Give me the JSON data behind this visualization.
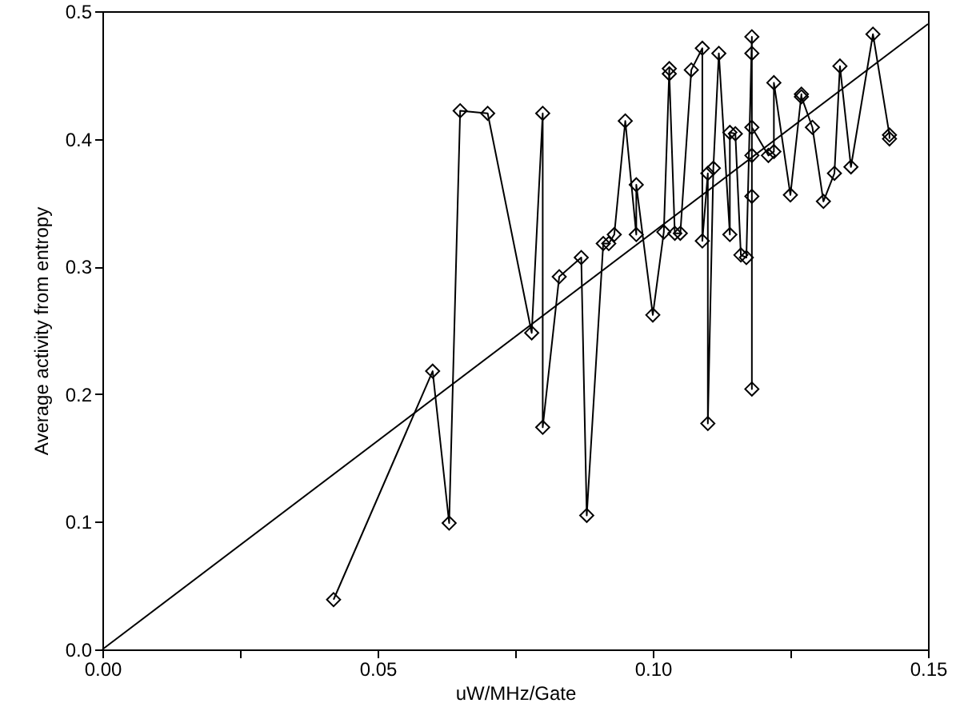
{
  "chart_data": {
    "type": "line",
    "xlabel": "uW/MHz/Gate",
    "ylabel": "Average activity from entropy",
    "xlim": [
      0,
      0.15
    ],
    "ylim": [
      0,
      0.5
    ],
    "xticks": [
      {
        "value": 0,
        "label": "0.00"
      },
      {
        "value": 0.025,
        "label": null
      },
      {
        "value": 0.05,
        "label": "0.05"
      },
      {
        "value": 0.075,
        "label": null
      },
      {
        "value": 0.1,
        "label": "0.10"
      },
      {
        "value": 0.125,
        "label": null
      },
      {
        "value": 0.15,
        "label": "0.15"
      }
    ],
    "yticks": [
      {
        "value": 0,
        "label": "0.0"
      },
      {
        "value": 0.1,
        "label": "0.1"
      },
      {
        "value": 0.2,
        "label": "0.2"
      },
      {
        "value": 0.3,
        "label": "0.3"
      },
      {
        "value": 0.4,
        "label": "0.4"
      },
      {
        "value": 0.5,
        "label": "0.5"
      }
    ],
    "grid": false,
    "line_style": "solid",
    "series": [
      {
        "color": "#000000",
        "marker": "diamond",
        "x": [
          0.042,
          0.06,
          0.063,
          0.065,
          0.07,
          0.078,
          0.08,
          0.08,
          0.083,
          0.087,
          0.088,
          0.091,
          0.092,
          0.093,
          0.095,
          0.097,
          0.097,
          0.1,
          0.102,
          0.103,
          0.103,
          0.104,
          0.105,
          0.107,
          0.109,
          0.109,
          0.11,
          0.11,
          0.111,
          0.112,
          0.114,
          0.114,
          0.115,
          0.116,
          0.117,
          0.118,
          0.118,
          0.118,
          0.118,
          0.118,
          0.118,
          0.121,
          0.122,
          0.122,
          0.125,
          0.127,
          0.127,
          0.129,
          0.131,
          0.133,
          0.134,
          0.136,
          0.14,
          0.143,
          0.143
        ],
        "values": [
          0.039,
          0.218,
          0.099,
          0.422,
          0.42,
          0.248,
          0.42,
          0.174,
          0.292,
          0.307,
          0.105,
          0.318,
          0.318,
          0.325,
          0.414,
          0.325,
          0.364,
          0.262,
          0.327,
          0.455,
          0.451,
          0.326,
          0.326,
          0.454,
          0.471,
          0.32,
          0.373,
          0.177,
          0.377,
          0.467,
          0.325,
          0.405,
          0.404,
          0.309,
          0.307,
          0.48,
          0.467,
          0.355,
          0.204,
          0.387,
          0.409,
          0.387,
          0.39,
          0.444,
          0.356,
          0.435,
          0.433,
          0.409,
          0.351,
          0.373,
          0.457,
          0.378,
          0.482,
          0.403,
          0.4
        ]
      },
      {
        "type": "line",
        "color": "#000000",
        "marker": "none",
        "x": [
          0,
          0.15
        ],
        "values": [
          0,
          0.49
        ]
      }
    ]
  }
}
